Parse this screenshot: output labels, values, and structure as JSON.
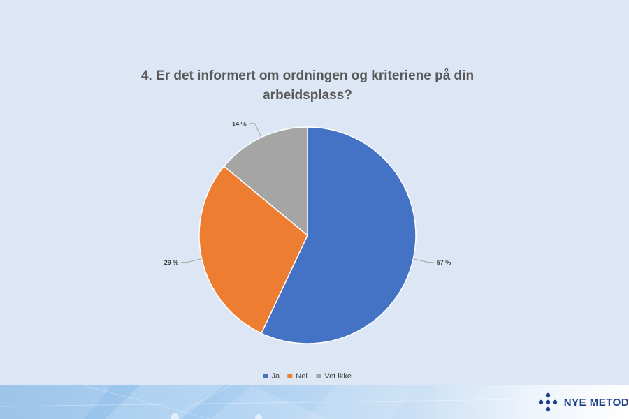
{
  "chart_data": {
    "type": "pie",
    "title_lines": [
      "4. Er det informert om ordningen og kriteriene på din",
      "arbeidsplass?"
    ],
    "categories": [
      "Ja",
      "Nei",
      "Vet ikke"
    ],
    "values": [
      57,
      29,
      14
    ],
    "labels": [
      "57 %",
      "29 %",
      "14 %"
    ],
    "colors": [
      "#4472c4",
      "#ed7d31",
      "#a5a5a5"
    ],
    "legend_position": "bottom"
  },
  "footer": {
    "logo_text": "NYE METODER"
  }
}
